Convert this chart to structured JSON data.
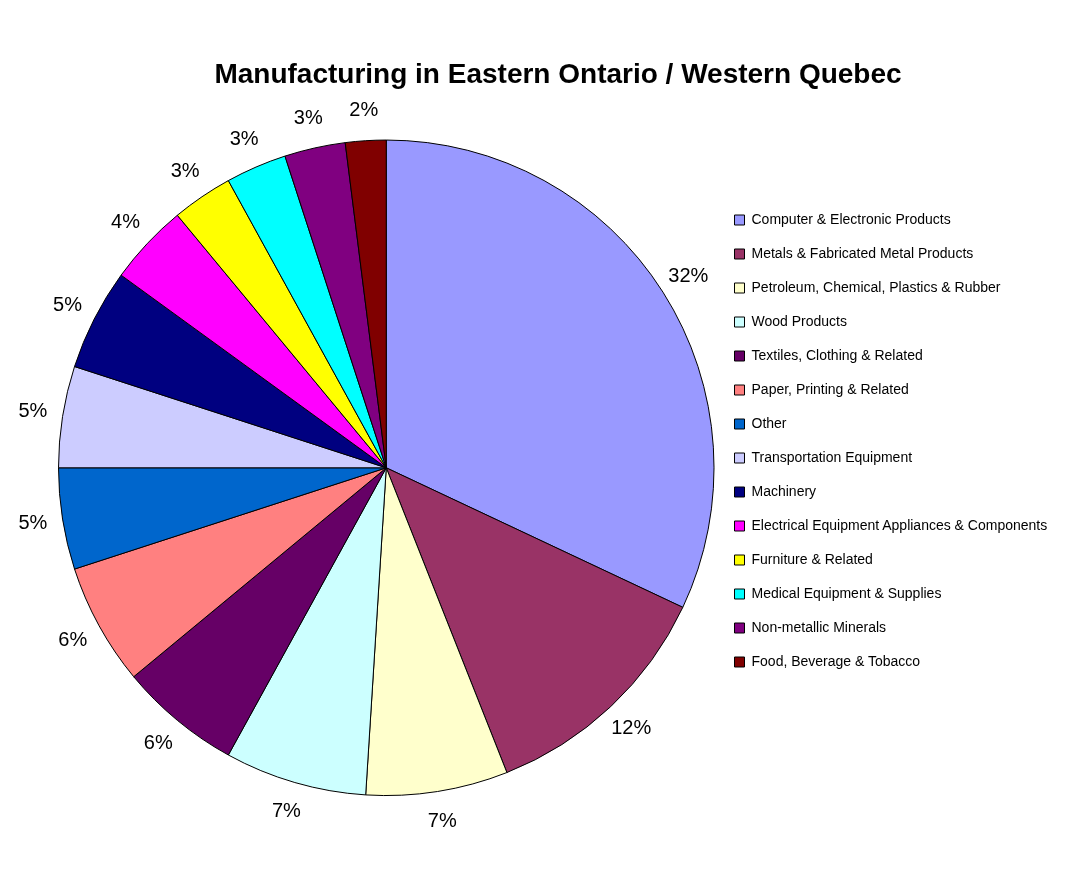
{
  "chart_data": {
    "type": "pie",
    "title": "Manufacturing in Eastern Ontario / Western Quebec",
    "categories": [
      "Computer & Electronic Products",
      "Metals & Fabricated Metal Products",
      "Petroleum, Chemical, Plastics & Rubber",
      "Wood Products",
      "Textiles, Clothing & Related",
      "Paper, Printing & Related",
      "Other",
      "Transportation Equipment",
      "Machinery",
      "Electrical Equipment Appliances & Components",
      "Furniture & Related",
      "Medical Equipment & Supplies",
      "Non-metallic Minerals",
      "Food, Beverage & Tobacco"
    ],
    "values": [
      32,
      12,
      7,
      7,
      6,
      6,
      5,
      5,
      5,
      4,
      3,
      3,
      3,
      2
    ],
    "value_labels": [
      "32%",
      "12%",
      "7%",
      "7%",
      "6%",
      "6%",
      "5%",
      "5%",
      "5%",
      "4%",
      "3%",
      "3%",
      "3%",
      "2%"
    ],
    "colors": [
      "#9999ff",
      "#993366",
      "#ffffcc",
      "#ccffff",
      "#660066",
      "#ff8080",
      "#0066cc",
      "#ccccff",
      "#000080",
      "#ff00ff",
      "#ffff00",
      "#00ffff",
      "#800080",
      "#800000"
    ],
    "legend": "right"
  }
}
